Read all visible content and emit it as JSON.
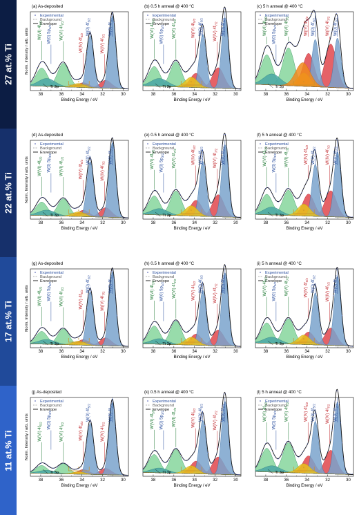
{
  "colors": {
    "band_top": "#0c1d44",
    "band_bottom": "#2f63c9",
    "w0": "#7aa3cd",
    "w0_line": "#3a6ea5",
    "w6": "#86d69c",
    "w6_line": "#2e8b57",
    "wiv": "#e0474c",
    "wiv_line": "#b0262b",
    "yellow": "#e7c11c",
    "orange": "#f08a1c",
    "ti": "#4aa7a5",
    "grey": "#a9a9a9",
    "label_blue": "#2b4f9e",
    "label_green": "#1f7a34",
    "label_red": "#c0262b",
    "bracket": "#c9912c"
  },
  "rows": [
    {
      "label": "27 at.% Ti"
    },
    {
      "label": "22 at.% Ti"
    },
    {
      "label": "17 at.% Ti"
    },
    {
      "label": "11 at.% Ti"
    }
  ],
  "axes": {
    "xlabel": "Binding Energy / eV",
    "ylabel": "Norm. Intensity / arb. units",
    "xticks": [
      "38",
      "36",
      "34",
      "32",
      "30"
    ]
  },
  "legend": {
    "experimental": "Experimental",
    "background": "Background",
    "envelope": "Envelope"
  },
  "peak_labels": {
    "w6_52": "W(VI) 4f5/2",
    "w6_72": "W(VI) 4f7/2",
    "w0_5p": "W(0) 5p3/2",
    "wiv_52": "W(IV) 4f5/2",
    "wiv_72": "W(IV) 4f7/2",
    "w0_52": "W(0) 4f5/2",
    "w0_72": "W(0) 4f7/2",
    "ti3p": "Ti 3p",
    "star": "*"
  },
  "chart_data": [
    {
      "panel": "(a)",
      "title": "As-deposited",
      "type": "line",
      "xlim": [
        39,
        29.5
      ],
      "xlabel": "Binding Energy / eV",
      "ylabel": "Norm. Intensity / arb. units",
      "xreversed": true,
      "peaks": {
        "w6_52": 0.23,
        "w6_72": 0.3,
        "wiv_52": 0.06,
        "wiv_72": 0.1,
        "w0_52": 0.66,
        "w0_72": 0.92,
        "ti3p": 0.1,
        "yellow": 0.05,
        "orange": 0.0
      },
      "bg_level": 0.06
    },
    {
      "panel": "(b)",
      "title": "0.5 h anneal @ 400 °C",
      "type": "line",
      "xlim": [
        39,
        29.5
      ],
      "xlabel": "Binding Energy / eV",
      "ylabel": "",
      "xreversed": true,
      "peaks": {
        "w6_52": 0.25,
        "w6_72": 0.32,
        "wiv_52": 0.18,
        "wiv_72": 0.26,
        "w0_52": 0.68,
        "w0_72": 0.9,
        "ti3p": 0.1,
        "yellow": 0.13,
        "orange": 0.0
      },
      "bg_level": 0.06
    },
    {
      "panel": "(c)",
      "title": "5 h anneal @ 400 °C",
      "type": "line",
      "xlim": [
        39,
        29.5
      ],
      "xlabel": "Binding Energy / eV",
      "ylabel": "",
      "xreversed": true,
      "peaks": {
        "w6_52": 0.38,
        "w6_72": 0.48,
        "wiv_52": 0.42,
        "wiv_72": 0.55,
        "w0_52": 0.6,
        "w0_72": 0.63,
        "ti3p": 0.14,
        "yellow": 0.17,
        "orange": 0.3
      },
      "bg_level": 0.08
    },
    {
      "panel": "(d)",
      "title": "As-deposited",
      "type": "line",
      "xlim": [
        39,
        29.5
      ],
      "xlabel": "Binding Energy / eV",
      "ylabel": "Norm. Intensity / arb. units",
      "xreversed": true,
      "peaks": {
        "w6_52": 0.17,
        "w6_72": 0.22,
        "wiv_52": 0.08,
        "wiv_72": 0.12,
        "w0_52": 0.7,
        "w0_72": 0.95,
        "ti3p": 0.07,
        "yellow": 0.06,
        "orange": 0.0
      },
      "bg_level": 0.05
    },
    {
      "panel": "(e)",
      "title": "0.5 h anneal @ 400 °C",
      "type": "line",
      "xlim": [
        39,
        29.5
      ],
      "xlabel": "Binding Energy / eV",
      "ylabel": "",
      "xreversed": true,
      "peaks": {
        "w6_52": 0.24,
        "w6_72": 0.31,
        "wiv_52": 0.2,
        "wiv_72": 0.28,
        "w0_52": 0.7,
        "w0_72": 0.92,
        "ti3p": 0.08,
        "yellow": 0.13,
        "orange": 0.0
      },
      "bg_level": 0.06
    },
    {
      "panel": "(f)",
      "title": "5 h anneal @ 400 °C",
      "type": "line",
      "xlim": [
        39,
        29.5
      ],
      "xlabel": "Binding Energy / eV",
      "ylabel": "",
      "xreversed": true,
      "peaks": {
        "w6_52": 0.26,
        "w6_72": 0.32,
        "wiv_52": 0.28,
        "wiv_72": 0.33,
        "w0_52": 0.66,
        "w0_72": 0.83,
        "ti3p": 0.1,
        "yellow": 0.15,
        "orange": 0.0
      },
      "bg_level": 0.06
    },
    {
      "panel": "(g)",
      "title": "As-deposited",
      "type": "line",
      "xlim": [
        39,
        29.5
      ],
      "xlabel": "Binding Energy / eV",
      "ylabel": "Norm. Intensity / arb. units",
      "xreversed": true,
      "peaks": {
        "w6_52": 0.16,
        "w6_72": 0.2,
        "wiv_52": 0.07,
        "wiv_72": 0.1,
        "w0_52": 0.68,
        "w0_72": 0.94,
        "ti3p": 0.06,
        "yellow": 0.05,
        "orange": 0.0
      },
      "bg_level": 0.05
    },
    {
      "panel": "(h)",
      "title": "0.5 h anneal @ 400 °C",
      "type": "line",
      "xlim": [
        39,
        29.5
      ],
      "xlabel": "Binding Energy / eV",
      "ylabel": "",
      "xreversed": true,
      "peaks": {
        "w6_52": 0.23,
        "w6_72": 0.3,
        "wiv_52": 0.14,
        "wiv_72": 0.2,
        "w0_52": 0.7,
        "w0_72": 0.93,
        "ti3p": 0.07,
        "yellow": 0.1,
        "orange": 0.0
      },
      "bg_level": 0.05
    },
    {
      "panel": "(i)",
      "title": "5 h anneal @ 400 °C",
      "type": "line",
      "xlim": [
        39,
        29.5
      ],
      "xlabel": "Binding Energy / eV",
      "ylabel": "",
      "xreversed": true,
      "peaks": {
        "w6_52": 0.26,
        "w6_72": 0.32,
        "wiv_52": 0.16,
        "wiv_72": 0.22,
        "w0_52": 0.66,
        "w0_72": 0.88,
        "ti3p": 0.08,
        "yellow": 0.12,
        "orange": 0.0
      },
      "bg_level": 0.06
    },
    {
      "panel": "(j)",
      "title": "As-deposited",
      "type": "line",
      "xlim": [
        39,
        29.5
      ],
      "xlabel": "Binding Energy / eV",
      "ylabel": "Norm. Intensity / arb. units",
      "xreversed": true,
      "peaks": {
        "w6_52": 0.1,
        "w6_72": 0.13,
        "wiv_52": 0.06,
        "wiv_72": 0.08,
        "w0_52": 0.65,
        "w0_72": 0.92,
        "ti3p": 0.04,
        "yellow": 0.03,
        "orange": 0.0
      },
      "bg_level": 0.04
    },
    {
      "panel": "(k)",
      "title": "0.5 h anneal @ 400 °C",
      "type": "line",
      "xlim": [
        39,
        29.5
      ],
      "xlabel": "Binding Energy / eV",
      "ylabel": "",
      "xreversed": true,
      "peaks": {
        "w6_52": 0.23,
        "w6_72": 0.3,
        "wiv_52": 0.16,
        "wiv_72": 0.22,
        "w0_52": 0.68,
        "w0_72": 0.93,
        "ti3p": 0.06,
        "yellow": 0.1,
        "orange": 0.0
      },
      "bg_level": 0.05
    },
    {
      "panel": "(l)",
      "title": "5 h anneal @ 400 °C",
      "type": "line",
      "xlim": [
        39,
        29.5
      ],
      "xlabel": "Binding Energy / eV",
      "ylabel": "",
      "xreversed": true,
      "peaks": {
        "w6_52": 0.3,
        "w6_72": 0.38,
        "wiv_52": 0.22,
        "wiv_72": 0.3,
        "w0_52": 0.66,
        "w0_72": 0.92,
        "ti3p": 0.08,
        "yellow": 0.12,
        "orange": 0.0
      },
      "bg_level": 0.06
    }
  ]
}
